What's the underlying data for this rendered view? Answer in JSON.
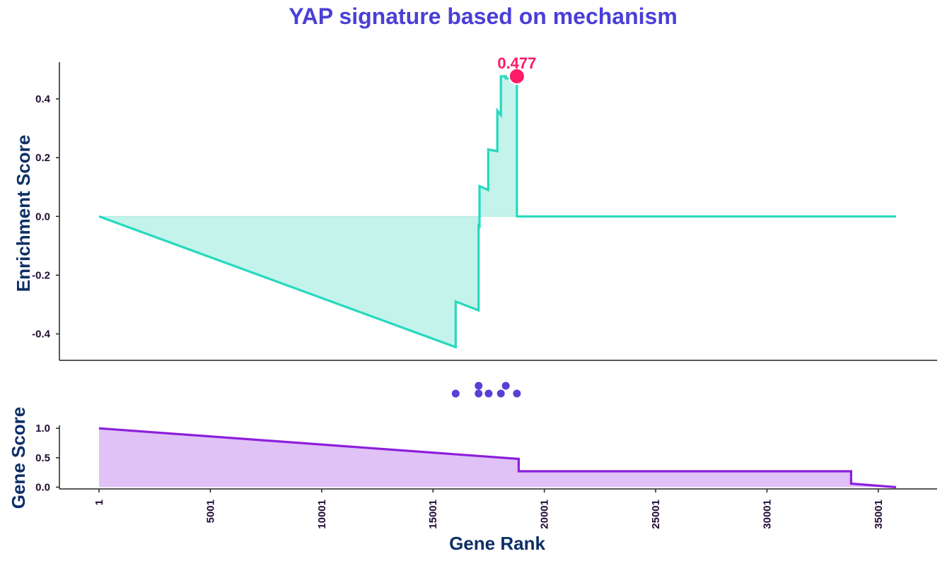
{
  "chart_data": [
    {
      "type": "area",
      "title": "YAP signature based on mechanism",
      "ylabel": "Enrichment Score",
      "ylim": [
        -0.49,
        0.525
      ],
      "yticks": [
        {
          "value": 0.4,
          "label": "0.4"
        },
        {
          "value": 0.2,
          "label": "0.2"
        },
        {
          "value": 0.0,
          "label": "0.0"
        },
        {
          "value": -0.2,
          "label": "-0.2"
        },
        {
          "value": -0.4,
          "label": "-0.4"
        }
      ],
      "peak": {
        "x": 18770,
        "y": 0.477,
        "label": "0.477"
      },
      "series": [
        {
          "x": [
            1,
            16020,
            16020,
            17050,
            17050,
            17090,
            17090,
            17480,
            17480,
            17890,
            17890,
            18050,
            18050,
            18270,
            18270,
            18770,
            18770,
            35800
          ],
          "y": [
            0.0,
            -0.445,
            -0.29,
            -0.32,
            -0.025,
            -0.04,
            0.103,
            0.09,
            0.228,
            0.222,
            0.36,
            0.345,
            0.477,
            0.477,
            0.47,
            0.47,
            0.0,
            0.0
          ]
        }
      ],
      "hits": [
        {
          "x": 16020,
          "row": 0
        },
        {
          "x": 17050,
          "row": 0
        },
        {
          "x": 17050,
          "row": 1
        },
        {
          "x": 17500,
          "row": 0
        },
        {
          "x": 18050,
          "row": 0
        },
        {
          "x": 18270,
          "row": 1
        },
        {
          "x": 18770,
          "row": 0
        }
      ],
      "colors": {
        "line": "#26d9bd",
        "fill": "#c4f3ec",
        "peak": "#ff1a66",
        "hits": "#5a3fd6"
      }
    },
    {
      "type": "area",
      "xlabel": "Gene Rank",
      "ylabel": "Gene Score",
      "ylim": [
        -0.03,
        1.05
      ],
      "yticks": [
        {
          "value": 1.0,
          "label": "1.0"
        },
        {
          "value": 0.5,
          "label": "0.5"
        },
        {
          "value": 0.0,
          "label": "0.0"
        }
      ],
      "xticks": [
        {
          "value": 1,
          "label": "1"
        },
        {
          "value": 5001,
          "label": "5001"
        },
        {
          "value": 10001,
          "label": "10001"
        },
        {
          "value": 15001,
          "label": "15001"
        },
        {
          "value": 20001,
          "label": "20001"
        },
        {
          "value": 25001,
          "label": "25001"
        },
        {
          "value": 30001,
          "label": "30001"
        },
        {
          "value": 35001,
          "label": "35001"
        }
      ],
      "series": [
        {
          "x": [
            1,
            18850,
            18850,
            33780,
            33780,
            35800
          ],
          "y": [
            1.0,
            0.48,
            0.27,
            0.27,
            0.06,
            0.0
          ]
        }
      ],
      "colors": {
        "line": "#8c1fdb",
        "fill": "#e0c2f7"
      }
    }
  ],
  "colors": {
    "title": "#4a3fd6",
    "axis_label": "#0d2f66",
    "tick_label": "#220a33",
    "axis": "#222222"
  }
}
